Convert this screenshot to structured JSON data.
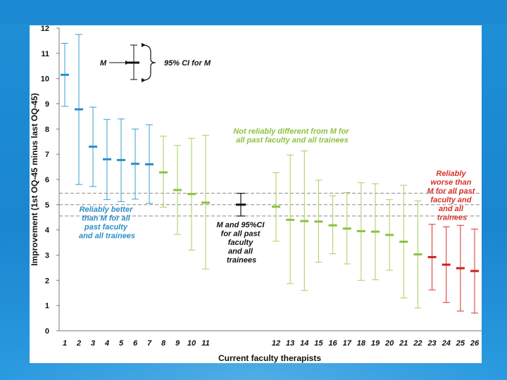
{
  "colors": {
    "blue": "#3aa0d2",
    "green": "#a9cf5f",
    "black": "#111111",
    "red": "#d6322b",
    "mean_blue": "#2a8fc6",
    "mean_green": "#8cc13f",
    "mean_red": "#c8231d",
    "dash": "#777777"
  },
  "chart_data": {
    "type": "errorbar",
    "xlabel": "Current faculty therapists",
    "ylabel": "Improvement (1st OQ-45 minus last OQ-45)",
    "ylim": [
      0,
      12
    ],
    "yticks": [
      "0",
      "1",
      "2",
      "3",
      "4",
      "5",
      "6",
      "7",
      "8",
      "9",
      "10",
      "11",
      "12"
    ],
    "reference": {
      "mean": 5.0,
      "ci_low": 4.55,
      "ci_high": 5.45,
      "label": "M and 95%CI for all past faculty and all trainees"
    },
    "legend": {
      "m_label": "M",
      "ci_label": "95% CI for M"
    },
    "groups": [
      {
        "name": "better",
        "label": "Reliably better than M for all past faculty and all trainees"
      },
      {
        "name": "notdiff",
        "label": "Not reliably different from M for all past faculty and all trainees"
      },
      {
        "name": "worse",
        "label": "Reliably worse than M for all past faculty and all trainees"
      }
    ],
    "series": [
      {
        "label": "1",
        "group": "better",
        "mean": 10.15,
        "low": 8.9,
        "high": 11.4
      },
      {
        "label": "2",
        "group": "better",
        "mean": 8.78,
        "low": 5.8,
        "high": 11.75
      },
      {
        "label": "3",
        "group": "better",
        "mean": 7.3,
        "low": 5.72,
        "high": 8.87
      },
      {
        "label": "4",
        "group": "better",
        "mean": 6.8,
        "low": 5.2,
        "high": 8.38
      },
      {
        "label": "5",
        "group": "better",
        "mean": 6.77,
        "low": 5.12,
        "high": 8.4
      },
      {
        "label": "6",
        "group": "better",
        "mean": 6.62,
        "low": 5.22,
        "high": 8.0
      },
      {
        "label": "7",
        "group": "better",
        "mean": 6.6,
        "low": 5.05,
        "high": 8.17
      },
      {
        "label": "8",
        "group": "notdiff",
        "mean": 6.28,
        "low": 4.9,
        "high": 7.72
      },
      {
        "label": "9",
        "group": "notdiff",
        "mean": 5.58,
        "low": 3.82,
        "high": 7.35
      },
      {
        "label": "10",
        "group": "notdiff",
        "mean": 5.42,
        "low": 3.2,
        "high": 7.63
      },
      {
        "label": "11",
        "group": "notdiff",
        "mean": 5.08,
        "low": 2.45,
        "high": 7.75
      },
      {
        "label": "12",
        "group": "notdiff",
        "mean": 4.92,
        "low": 3.55,
        "high": 6.27
      },
      {
        "label": "13",
        "group": "notdiff",
        "mean": 4.4,
        "low": 1.87,
        "high": 6.97
      },
      {
        "label": "14",
        "group": "notdiff",
        "mean": 4.35,
        "low": 1.6,
        "high": 7.13
      },
      {
        "label": "15",
        "group": "notdiff",
        "mean": 4.33,
        "low": 2.72,
        "high": 5.97
      },
      {
        "label": "16",
        "group": "notdiff",
        "mean": 4.18,
        "low": 3.05,
        "high": 5.35
      },
      {
        "label": "17",
        "group": "notdiff",
        "mean": 4.05,
        "low": 2.65,
        "high": 5.48
      },
      {
        "label": "18",
        "group": "notdiff",
        "mean": 3.95,
        "low": 2.0,
        "high": 5.87
      },
      {
        "label": "19",
        "group": "notdiff",
        "mean": 3.93,
        "low": 2.02,
        "high": 5.83
      },
      {
        "label": "20",
        "group": "notdiff",
        "mean": 3.8,
        "low": 2.4,
        "high": 5.2
      },
      {
        "label": "21",
        "group": "notdiff",
        "mean": 3.53,
        "low": 1.3,
        "high": 5.77
      },
      {
        "label": "22",
        "group": "notdiff",
        "mean": 3.03,
        "low": 0.9,
        "high": 5.15
      },
      {
        "label": "23",
        "group": "worse",
        "mean": 2.92,
        "low": 1.62,
        "high": 4.22
      },
      {
        "label": "24",
        "group": "worse",
        "mean": 2.62,
        "low": 1.12,
        "high": 4.12
      },
      {
        "label": "25",
        "group": "worse",
        "mean": 2.48,
        "low": 0.78,
        "high": 4.18
      },
      {
        "label": "26",
        "group": "worse",
        "mean": 2.37,
        "low": 0.7,
        "high": 4.03
      }
    ]
  }
}
